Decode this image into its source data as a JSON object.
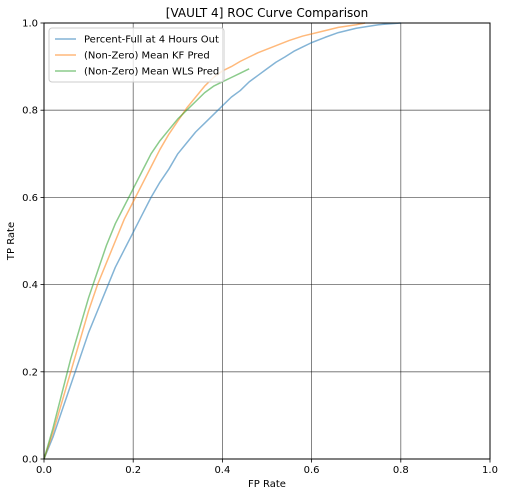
{
  "chart_data": {
    "type": "line",
    "title": "[VAULT 4] ROC Curve Comparison",
    "xlabel": "FP Rate",
    "ylabel": "TP Rate",
    "xlim": [
      0,
      1
    ],
    "ylim": [
      0,
      1
    ],
    "xticks": [
      "0.0",
      "0.2",
      "0.4",
      "0.6",
      "0.8",
      "1.0"
    ],
    "yticks": [
      "0.0",
      "0.2",
      "0.4",
      "0.6",
      "0.8",
      "1.0"
    ],
    "grid": true,
    "legend": "top-left",
    "series": [
      {
        "name": "Percent-Full at 4 Hours Out",
        "color": "#1f77b4",
        "points": [
          [
            0,
            0
          ],
          [
            0.02,
            0.05
          ],
          [
            0.04,
            0.11
          ],
          [
            0.06,
            0.17
          ],
          [
            0.08,
            0.23
          ],
          [
            0.1,
            0.29
          ],
          [
            0.12,
            0.34
          ],
          [
            0.14,
            0.39
          ],
          [
            0.16,
            0.44
          ],
          [
            0.18,
            0.48
          ],
          [
            0.2,
            0.52
          ],
          [
            0.22,
            0.56
          ],
          [
            0.24,
            0.6
          ],
          [
            0.26,
            0.635
          ],
          [
            0.28,
            0.665
          ],
          [
            0.3,
            0.7
          ],
          [
            0.32,
            0.725
          ],
          [
            0.34,
            0.75
          ],
          [
            0.36,
            0.77
          ],
          [
            0.38,
            0.79
          ],
          [
            0.4,
            0.81
          ],
          [
            0.42,
            0.83
          ],
          [
            0.44,
            0.845
          ],
          [
            0.46,
            0.865
          ],
          [
            0.48,
            0.88
          ],
          [
            0.5,
            0.895
          ],
          [
            0.52,
            0.91
          ],
          [
            0.54,
            0.922
          ],
          [
            0.56,
            0.935
          ],
          [
            0.58,
            0.945
          ],
          [
            0.6,
            0.955
          ],
          [
            0.63,
            0.967
          ],
          [
            0.66,
            0.978
          ],
          [
            0.7,
            0.988
          ],
          [
            0.75,
            0.996
          ],
          [
            0.8,
            1.0
          ]
        ]
      },
      {
        "name": "(Non-Zero) Mean KF Pred",
        "color": "#ff7f0e",
        "points": [
          [
            0,
            0
          ],
          [
            0.02,
            0.06
          ],
          [
            0.04,
            0.13
          ],
          [
            0.06,
            0.2
          ],
          [
            0.08,
            0.27
          ],
          [
            0.1,
            0.34
          ],
          [
            0.12,
            0.4
          ],
          [
            0.14,
            0.45
          ],
          [
            0.16,
            0.5
          ],
          [
            0.18,
            0.55
          ],
          [
            0.2,
            0.59
          ],
          [
            0.22,
            0.63
          ],
          [
            0.24,
            0.67
          ],
          [
            0.26,
            0.71
          ],
          [
            0.28,
            0.745
          ],
          [
            0.3,
            0.775
          ],
          [
            0.32,
            0.805
          ],
          [
            0.34,
            0.83
          ],
          [
            0.36,
            0.855
          ],
          [
            0.38,
            0.875
          ],
          [
            0.4,
            0.89
          ],
          [
            0.42,
            0.9
          ],
          [
            0.44,
            0.912
          ],
          [
            0.46,
            0.922
          ],
          [
            0.48,
            0.932
          ],
          [
            0.5,
            0.94
          ],
          [
            0.52,
            0.948
          ],
          [
            0.55,
            0.96
          ],
          [
            0.58,
            0.97
          ],
          [
            0.62,
            0.98
          ],
          [
            0.66,
            0.99
          ],
          [
            0.7,
            0.996
          ],
          [
            0.72,
            1.0
          ]
        ]
      },
      {
        "name": "(Non-Zero) Mean WLS Pred",
        "color": "#2ca02c",
        "points": [
          [
            0,
            0
          ],
          [
            0.02,
            0.07
          ],
          [
            0.04,
            0.15
          ],
          [
            0.06,
            0.23
          ],
          [
            0.08,
            0.3
          ],
          [
            0.1,
            0.37
          ],
          [
            0.12,
            0.43
          ],
          [
            0.14,
            0.49
          ],
          [
            0.16,
            0.54
          ],
          [
            0.18,
            0.58
          ],
          [
            0.2,
            0.62
          ],
          [
            0.22,
            0.66
          ],
          [
            0.24,
            0.7
          ],
          [
            0.26,
            0.73
          ],
          [
            0.28,
            0.755
          ],
          [
            0.3,
            0.78
          ],
          [
            0.32,
            0.8
          ],
          [
            0.34,
            0.82
          ],
          [
            0.36,
            0.84
          ],
          [
            0.38,
            0.855
          ],
          [
            0.4,
            0.865
          ],
          [
            0.42,
            0.875
          ],
          [
            0.44,
            0.885
          ],
          [
            0.46,
            0.895
          ]
        ]
      }
    ]
  }
}
